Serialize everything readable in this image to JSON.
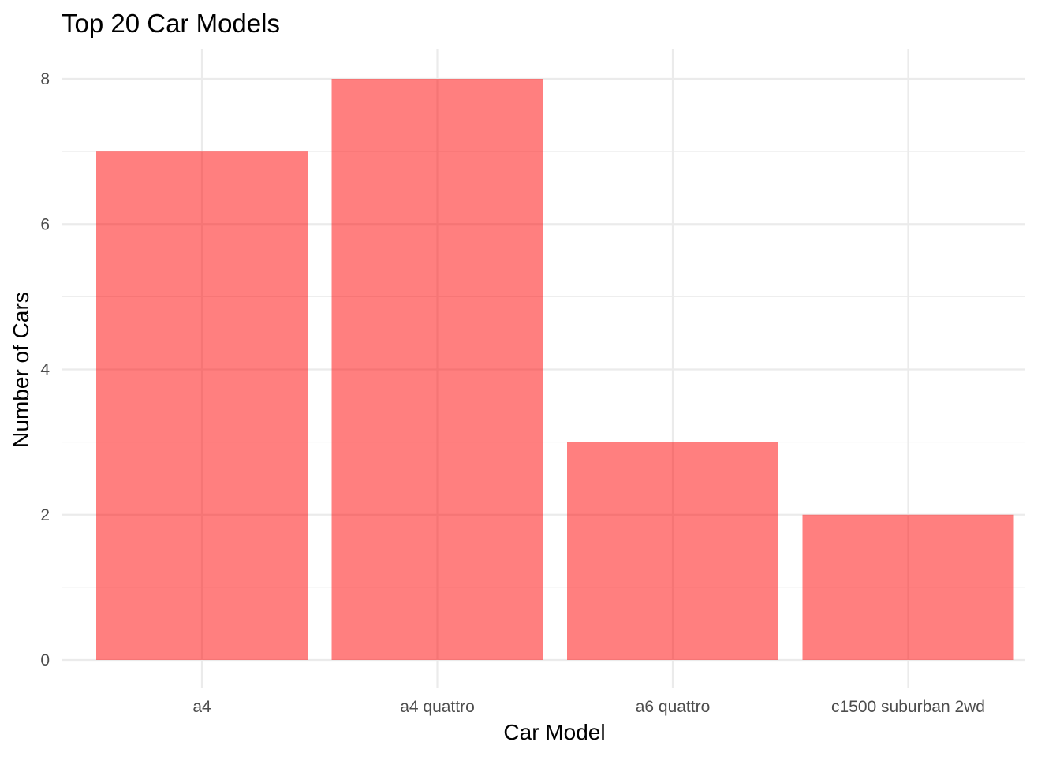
{
  "chart_data": {
    "type": "bar",
    "title": "Top 20 Car Models",
    "xlabel": "Car Model",
    "ylabel": "Number of Cars",
    "categories": [
      "a4",
      "a4 quattro",
      "a6 quattro",
      "c1500 suburban 2wd"
    ],
    "values": [
      7,
      8,
      3,
      2
    ],
    "ylim": [
      0,
      8
    ],
    "yticks": [
      "0",
      "2",
      "4",
      "6",
      "8"
    ],
    "grid": true,
    "legend": "none",
    "bar_color": "#ff0000",
    "bar_opacity": 0.5
  }
}
